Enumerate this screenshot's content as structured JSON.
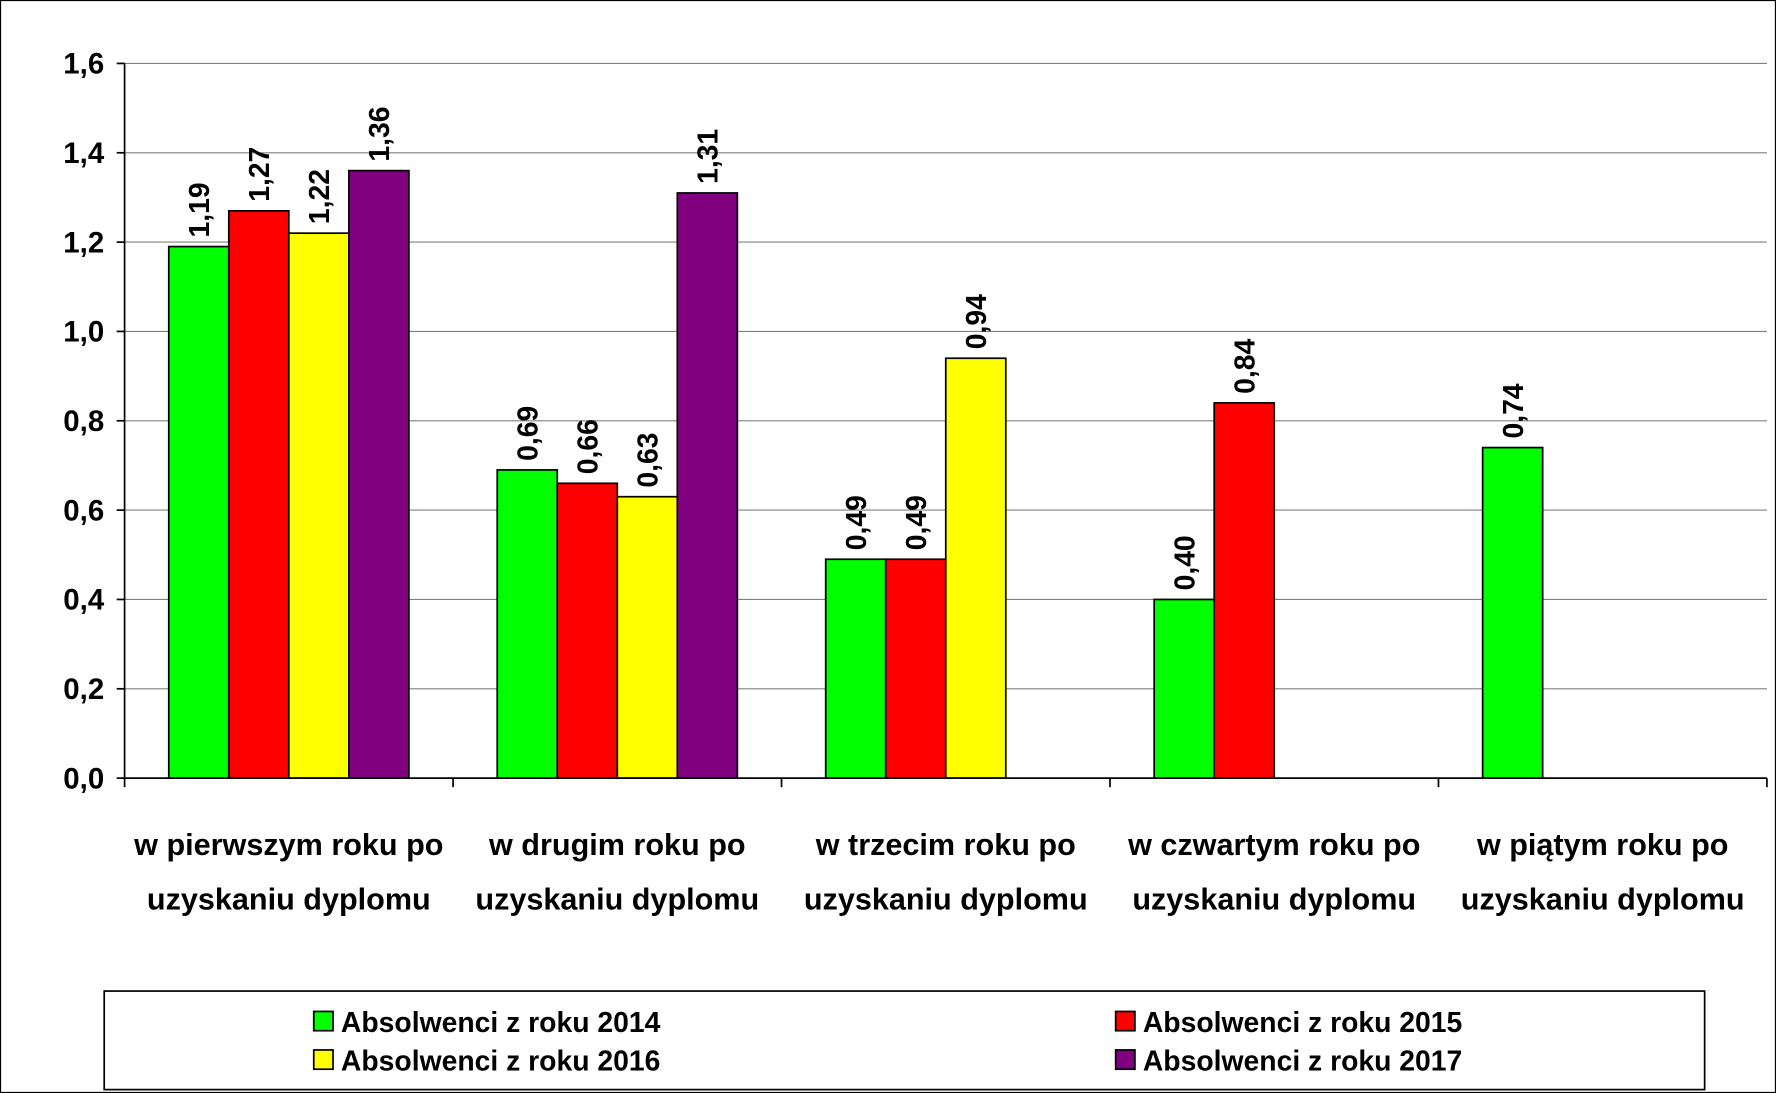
{
  "chart_data": {
    "type": "bar",
    "categories": [
      "w pierwszym roku po uzyskaniu dyplomu",
      "w drugim roku po uzyskaniu dyplomu",
      "w trzecim roku po uzyskaniu dyplomu",
      "w czwartym roku po uzyskaniu dyplomu",
      "w piątym roku po uzyskaniu dyplomu"
    ],
    "series": [
      {
        "name": "Absolwenci z roku 2014",
        "color": "#00ff00",
        "values": [
          1.19,
          0.69,
          0.49,
          0.4,
          0.74
        ],
        "value_labels": [
          "1,19",
          "0,69",
          "0,49",
          "0,40",
          "0,74"
        ]
      },
      {
        "name": "Absolwenci z roku 2015",
        "color": "#ff0000",
        "values": [
          1.27,
          0.66,
          0.49,
          0.84,
          null
        ],
        "value_labels": [
          "1,27",
          "0,66",
          "0,49",
          "0,84",
          null
        ]
      },
      {
        "name": "Absolwenci z roku 2016",
        "color": "#ffff00",
        "values": [
          1.22,
          0.63,
          0.94,
          null,
          null
        ],
        "value_labels": [
          "1,22",
          "0,63",
          "0,94",
          null,
          null
        ]
      },
      {
        "name": "Absolwenci z roku 2017",
        "color": "#800080",
        "values": [
          1.36,
          1.31,
          null,
          null,
          null
        ],
        "value_labels": [
          "1,36",
          "1,31",
          null,
          null,
          null
        ]
      }
    ],
    "ylim": [
      0,
      1.6
    ],
    "yticks": [
      {
        "value": 0,
        "label": "0,0"
      },
      {
        "value": 0.2,
        "label": "0,2"
      },
      {
        "value": 0.4,
        "label": "0,4"
      },
      {
        "value": 0.6,
        "label": "0,6"
      },
      {
        "value": 0.8,
        "label": "0,8"
      },
      {
        "value": 1.0,
        "label": "1,0"
      },
      {
        "value": 1.2,
        "label": "1,2"
      },
      {
        "value": 1.4,
        "label": "1,4"
      },
      {
        "value": 1.6,
        "label": "1,6"
      }
    ],
    "grid": true
  }
}
